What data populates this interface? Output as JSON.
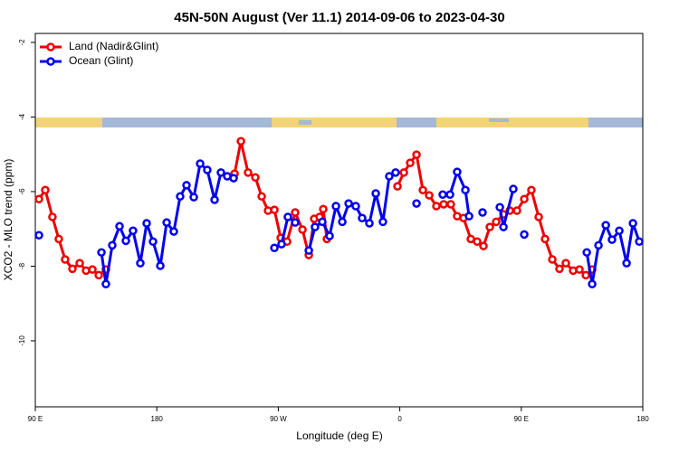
{
  "chart_data": {
    "type": "line",
    "title": "45N-50N August (Ver 11.1)   2014-09-06 to 2023-04-30",
    "x_label": "Longitude (deg E)",
    "y_label": "XCO2 - MLO trend (ppm)",
    "xlim": [
      90,
      540
    ],
    "xticks": [
      {
        "value": 90,
        "label": "90 E"
      },
      {
        "value": 180,
        "label": "180"
      },
      {
        "value": 270,
        "label": "90 W"
      },
      {
        "value": 360,
        "label": "0"
      },
      {
        "value": 450,
        "label": "90 E"
      },
      {
        "value": 540,
        "label": "180"
      }
    ],
    "ylim": [
      -11.77,
      -1.76
    ],
    "yticks": [
      -2,
      -4,
      -6,
      -8,
      -10
    ],
    "legend": "top-left",
    "series": [
      {
        "name": "Land (Nadir&Glint)",
        "color": "#ee0000",
        "x": [
          92.7,
          97.4,
          102.7,
          107.4,
          112.1,
          117.5,
          122.9,
          127.6,
          132.3,
          137.0,
          142.3,
          null,
          237.6,
          242.3,
          247.6,
          253.0,
          257.7,
          262.4,
          267.1,
          271.8,
          276.5,
          282.5,
          287.9,
          292.6,
          296.6,
          300.6,
          303.3,
          306.0,
          null,
          358.3,
          363.0,
          367.7,
          372.4,
          377.1,
          381.8,
          387.1,
          392.5,
          397.8,
          402.5,
          407.2,
          412.6,
          417.3,
          422.0,
          426.7,
          431.4,
          436.8,
          441.5,
          446.8,
          452.2,
          457.5,
          462.9,
          467.6,
          473.0,
          478.3,
          483.0,
          488.4,
          493.1,
          497.8,
          502.5
        ],
        "values": [
          -6.2,
          -5.96,
          -6.68,
          -7.27,
          -7.82,
          -8.07,
          -7.92,
          -8.12,
          -8.09,
          -8.24,
          -8.09,
          null,
          -5.52,
          -4.65,
          -5.49,
          -5.62,
          -6.13,
          -6.51,
          -6.49,
          -7.24,
          -7.34,
          -6.56,
          -7.02,
          -7.7,
          -6.73,
          -6.68,
          -6.47,
          -7.27,
          null,
          -5.86,
          -5.49,
          -5.23,
          -5.01,
          -5.96,
          -6.1,
          -6.39,
          -6.34,
          -6.34,
          -6.66,
          -6.71,
          -7.27,
          -7.34,
          -7.46,
          -6.95,
          -6.81,
          -6.61,
          -6.51,
          -6.51,
          -6.2,
          -5.96,
          -6.68,
          -7.27,
          -7.82,
          -8.07,
          -7.92,
          -8.12,
          -8.09,
          -8.24,
          -8.09
        ]
      },
      {
        "name": "Ocean (Glint)",
        "color": "#0000ee",
        "x": [
          92.7,
          null,
          139.0,
          142.3,
          147.0,
          152.4,
          157.1,
          162.4,
          167.8,
          172.5,
          177.2,
          182.6,
          187.3,
          192.6,
          197.3,
          202.0,
          207.4,
          212.1,
          217.4,
          222.8,
          227.5,
          232.2,
          236.9,
          null,
          267.1,
          272.4,
          277.1,
          282.5,
          null,
          292.6,
          297.2,
          302.6,
          308.0,
          312.7,
          317.4,
          322.1,
          327.4,
          332.1,
          337.5,
          342.2,
          347.5,
          352.2,
          356.9,
          null,
          372.4,
          null,
          391.8,
          397.2,
          402.5,
          408.6,
          411.3,
          null,
          421.3,
          null,
          434.1,
          436.8,
          444.1,
          null,
          452.2,
          null,
          498.5,
          502.5,
          507.2,
          512.6,
          517.2,
          522.6,
          528.0,
          532.7,
          537.4
        ],
        "values": [
          -7.17,
          null,
          -7.63,
          -8.48,
          -7.44,
          -6.93,
          -7.32,
          -7.05,
          -7.92,
          -6.85,
          -7.34,
          -7.99,
          -6.83,
          -7.07,
          -6.13,
          -5.83,
          -6.15,
          -5.25,
          -5.42,
          -6.22,
          -5.49,
          -5.59,
          -5.64,
          null,
          -7.51,
          -7.41,
          -6.68,
          -6.83,
          null,
          -7.58,
          -6.95,
          -6.81,
          -7.19,
          -6.39,
          -6.81,
          -6.32,
          -6.39,
          -6.71,
          -6.85,
          -6.05,
          -6.81,
          -5.59,
          -5.49,
          null,
          -6.32,
          null,
          -6.08,
          -6.08,
          -5.47,
          -5.96,
          -6.66,
          null,
          -6.56,
          null,
          -6.42,
          -6.95,
          -5.93,
          null,
          -7.15,
          null,
          -7.63,
          -8.48,
          -7.44,
          -6.9,
          -7.29,
          -7.05,
          -7.92,
          -6.85,
          -7.34
        ]
      }
    ]
  }
}
